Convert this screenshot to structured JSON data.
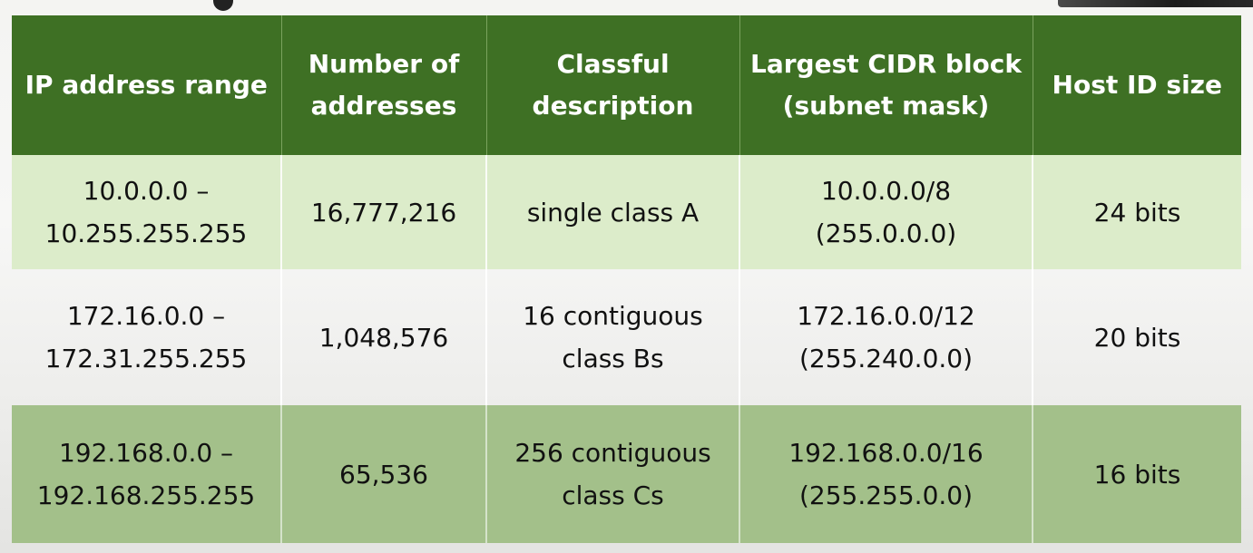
{
  "table": {
    "headers": [
      [
        "IP address range"
      ],
      [
        "Number of",
        "addresses"
      ],
      [
        "Classful",
        "description"
      ],
      [
        "Largest CIDR block",
        "(subnet mask)"
      ],
      [
        "Host ID size"
      ]
    ],
    "rows": [
      {
        "range": [
          "10.0.0.0 –",
          "10.255.255.255"
        ],
        "count": "16,777,216",
        "classful": [
          "single class A"
        ],
        "cidr": [
          "10.0.0.0/8",
          "(255.0.0.0)"
        ],
        "host_bits": "24 bits"
      },
      {
        "range": [
          "172.16.0.0 –",
          "172.31.255.255"
        ],
        "count": "1,048,576",
        "classful": [
          "16 contiguous",
          "class Bs"
        ],
        "cidr": [
          "172.16.0.0/12",
          "(255.240.0.0)"
        ],
        "host_bits": "20 bits"
      },
      {
        "range": [
          "192.168.0.0 –",
          "192.168.255.255"
        ],
        "count": "65,536",
        "classful": [
          "256 contiguous",
          "class Cs"
        ],
        "cidr": [
          "192.168.0.0/16",
          "(255.255.0.0)"
        ],
        "host_bits": "16 bits"
      }
    ]
  },
  "colors": {
    "header_bg": "#3e7024",
    "row_1_bg": "#dcecca",
    "row_3_bg": "#a3c08a"
  }
}
